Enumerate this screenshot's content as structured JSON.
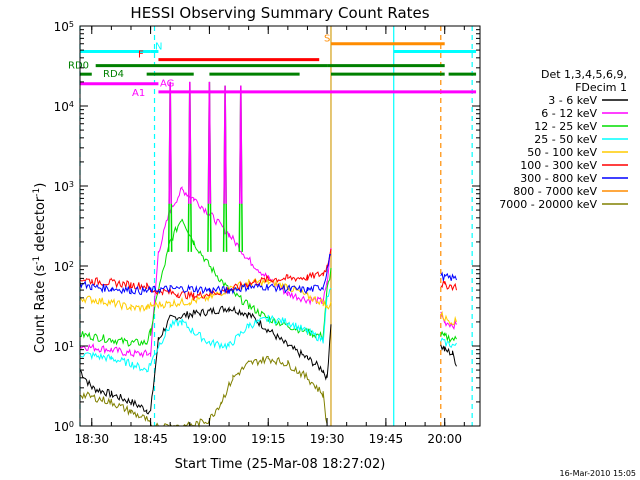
{
  "chart_data": {
    "type": "line",
    "title": "HESSI Observing Summary Count Rates",
    "xlabel": "Start Time (25-Mar-08 18:27:02)",
    "ylabel_main": "Count Rate (s",
    "ylabel_sup1": "-1",
    "ylabel_mid": " detector",
    "ylabel_sup2": "-1",
    "ylabel_end": ")",
    "xlim": [
      "18:27",
      "20:09"
    ],
    "ylim": [
      1,
      100000
    ],
    "yscale": "log",
    "xticks": [
      "18:30",
      "18:45",
      "19:00",
      "19:15",
      "19:30",
      "19:45",
      "20:00"
    ],
    "yticks": [
      {
        "value": 1,
        "base": "10",
        "exp": "0"
      },
      {
        "value": 10,
        "base": "10",
        "exp": "1"
      },
      {
        "value": 100,
        "base": "10",
        "exp": "2"
      },
      {
        "value": 1000,
        "base": "10",
        "exp": "3"
      },
      {
        "value": 10000,
        "base": "10",
        "exp": "4"
      },
      {
        "value": 100000,
        "base": "10",
        "exp": "5"
      }
    ],
    "legend_header": [
      "Det 1,3,4,5,6,9,",
      "FDecim 1"
    ],
    "legend_placement": "right",
    "footer_timestamp": "16-Mar-2010 15:05",
    "series": [
      {
        "name": "3 - 6 keV",
        "color": "#000000",
        "points": [
          [
            "18:27",
            5
          ],
          [
            "18:30",
            3
          ],
          [
            "18:35",
            2.5
          ],
          [
            "18:40",
            2
          ],
          [
            "18:44",
            1.6
          ],
          [
            "18:45",
            1.5
          ],
          [
            "18:47",
            12
          ],
          [
            "18:50",
            22
          ],
          [
            "18:55",
            25
          ],
          [
            "19:00",
            27
          ],
          [
            "19:05",
            30
          ],
          [
            "19:10",
            25
          ],
          [
            "19:15",
            16
          ],
          [
            "19:20",
            10
          ],
          [
            "19:25",
            7
          ],
          [
            "19:29",
            5
          ],
          [
            "19:30",
            4
          ],
          [
            "19:31",
            20
          ],
          [
            "19:59",
            10
          ],
          [
            "20:00",
            9
          ],
          [
            "20:02",
            8
          ],
          [
            "20:03",
            6
          ]
        ]
      },
      {
        "name": "6 - 12 keV",
        "color": "#ff00ff",
        "points": [
          [
            "18:27",
            10
          ],
          [
            "18:35",
            9
          ],
          [
            "18:40",
            8
          ],
          [
            "18:44",
            8
          ],
          [
            "18:45",
            8
          ],
          [
            "18:47",
            150
          ],
          [
            "18:50",
            500
          ],
          [
            "18:53",
            900
          ],
          [
            "18:56",
            700
          ],
          [
            "19:00",
            450
          ],
          [
            "19:05",
            250
          ],
          [
            "19:10",
            120
          ],
          [
            "19:15",
            70
          ],
          [
            "19:20",
            45
          ],
          [
            "19:25",
            38
          ],
          [
            "19:29",
            36
          ],
          [
            "19:30",
            60
          ],
          [
            "19:31",
            180
          ],
          [
            "19:59",
            25
          ],
          [
            "20:00",
            20
          ],
          [
            "20:03",
            18
          ]
        ]
      },
      {
        "name": "12 - 25 keV",
        "color": "#00dd00",
        "points": [
          [
            "18:27",
            14
          ],
          [
            "18:35",
            12
          ],
          [
            "18:40",
            11
          ],
          [
            "18:44",
            11
          ],
          [
            "18:45",
            15
          ],
          [
            "18:47",
            50
          ],
          [
            "18:50",
            200
          ],
          [
            "18:53",
            400
          ],
          [
            "18:56",
            200
          ],
          [
            "19:00",
            100
          ],
          [
            "19:05",
            50
          ],
          [
            "19:10",
            32
          ],
          [
            "19:15",
            22
          ],
          [
            "19:20",
            18
          ],
          [
            "19:25",
            15
          ],
          [
            "19:29",
            13
          ],
          [
            "19:30",
            50
          ],
          [
            "19:31",
            90
          ],
          [
            "19:59",
            14
          ],
          [
            "20:00",
            13
          ],
          [
            "20:03",
            12
          ]
        ]
      },
      {
        "name": "25 - 50 keV",
        "color": "#00ffff",
        "points": [
          [
            "18:27",
            8
          ],
          [
            "18:35",
            7
          ],
          [
            "18:40",
            6
          ],
          [
            "18:44",
            5
          ],
          [
            "18:45",
            6
          ],
          [
            "18:47",
            10
          ],
          [
            "18:50",
            18
          ],
          [
            "18:53",
            20
          ],
          [
            "18:56",
            15
          ],
          [
            "19:00",
            11
          ],
          [
            "19:05",
            10
          ],
          [
            "19:10",
            18
          ],
          [
            "19:15",
            22
          ],
          [
            "19:20",
            20
          ],
          [
            "19:25",
            15
          ],
          [
            "19:29",
            12
          ],
          [
            "19:30",
            40
          ],
          [
            "19:31",
            50
          ],
          [
            "19:59",
            12
          ],
          [
            "20:00",
            11
          ],
          [
            "20:03",
            10
          ]
        ]
      },
      {
        "name": "50 - 100 keV",
        "color": "#ffcc00",
        "points": [
          [
            "18:27",
            40
          ],
          [
            "18:35",
            35
          ],
          [
            "18:40",
            30
          ],
          [
            "18:44",
            30
          ],
          [
            "18:45",
            32
          ],
          [
            "18:50",
            34
          ],
          [
            "18:55",
            36
          ],
          [
            "19:00",
            40
          ],
          [
            "19:05",
            52
          ],
          [
            "19:10",
            62
          ],
          [
            "19:15",
            63
          ],
          [
            "19:20",
            55
          ],
          [
            "19:25",
            42
          ],
          [
            "19:29",
            35
          ],
          [
            "19:30",
            30
          ],
          [
            "19:31",
            35
          ],
          [
            "19:59",
            25
          ],
          [
            "20:00",
            22
          ],
          [
            "20:03",
            20
          ]
        ]
      },
      {
        "name": "100 - 300 keV",
        "color": "#ff0000",
        "points": [
          [
            "18:27",
            70
          ],
          [
            "18:30",
            65
          ],
          [
            "18:35",
            62
          ],
          [
            "18:40",
            58
          ],
          [
            "18:44",
            56
          ],
          [
            "18:45",
            50
          ],
          [
            "18:48",
            48
          ],
          [
            "18:52",
            45
          ],
          [
            "18:56",
            42
          ],
          [
            "19:00",
            45
          ],
          [
            "19:05",
            50
          ],
          [
            "19:10",
            60
          ],
          [
            "19:15",
            68
          ],
          [
            "19:20",
            70
          ],
          [
            "19:25",
            72
          ],
          [
            "19:29",
            80
          ],
          [
            "19:30",
            100
          ],
          [
            "19:31",
            170
          ],
          [
            "19:59",
            60
          ],
          [
            "20:00",
            58
          ],
          [
            "20:03",
            55
          ]
        ]
      },
      {
        "name": "300 - 800 keV",
        "color": "#0000ff",
        "points": [
          [
            "18:27",
            60
          ],
          [
            "18:30",
            55
          ],
          [
            "18:35",
            52
          ],
          [
            "18:40",
            50
          ],
          [
            "18:44",
            48
          ],
          [
            "18:45",
            50
          ],
          [
            "18:50",
            52
          ],
          [
            "18:55",
            52
          ],
          [
            "19:00",
            50
          ],
          [
            "19:05",
            50
          ],
          [
            "19:10",
            55
          ],
          [
            "19:15",
            55
          ],
          [
            "19:20",
            52
          ],
          [
            "19:25",
            50
          ],
          [
            "19:29",
            55
          ],
          [
            "19:30",
            90
          ],
          [
            "19:31",
            150
          ],
          [
            "19:59",
            75
          ],
          [
            "20:00",
            72
          ],
          [
            "20:03",
            70
          ]
        ]
      },
      {
        "name": "800 - 7000 keV",
        "color": "#ff8c00",
        "points": []
      },
      {
        "name": "7000 - 20000 keV",
        "color": "#808000",
        "points": [
          [
            "18:27",
            2.5
          ],
          [
            "18:35",
            2
          ],
          [
            "18:40",
            1.5
          ],
          [
            "18:44",
            1.2
          ],
          [
            "18:45",
            1
          ],
          [
            "18:50",
            1
          ],
          [
            "18:55",
            1
          ],
          [
            "19:00",
            1.2
          ],
          [
            "19:03",
            2
          ],
          [
            "19:06",
            4
          ],
          [
            "19:10",
            6
          ],
          [
            "19:15",
            7
          ],
          [
            "19:20",
            6
          ],
          [
            "19:25",
            4
          ],
          [
            "19:29",
            2.5
          ],
          [
            "19:30",
            1
          ]
        ]
      }
    ],
    "flare_spikes": [
      {
        "time": "18:50",
        "peak": 20000
      },
      {
        "time": "18:55",
        "peak": 20000
      },
      {
        "time": "19:00",
        "peak": 20000
      },
      {
        "time": "19:04",
        "peak": 18000
      },
      {
        "time": "19:08",
        "peak": 18000
      }
    ],
    "state_bars": [
      {
        "label": "N",
        "color": "#00ffff",
        "y": 48000,
        "segments": [
          [
            "18:27",
            "18:45"
          ],
          [
            "18:45",
            "18:47"
          ],
          [
            "19:47",
            "20:08"
          ]
        ]
      },
      {
        "label": "S",
        "color": "#ff8c00",
        "y": 60000,
        "segments": [
          [
            "19:31",
            "20:00"
          ]
        ]
      },
      {
        "label": "F",
        "color": "#ff0000",
        "y": 38000,
        "segments": [
          [
            "18:47",
            "19:28"
          ]
        ]
      },
      {
        "label": "RD0",
        "color": "#008000",
        "y": 32000,
        "segments": [
          [
            "18:31",
            "19:30"
          ],
          [
            "19:30",
            "20:00"
          ]
        ]
      },
      {
        "label": "RD4",
        "color": "#008000",
        "y": 25000,
        "segments": [
          [
            "18:27",
            "18:30"
          ],
          [
            "18:44",
            "18:56"
          ],
          [
            "19:00",
            "19:23"
          ],
          [
            "19:31",
            "20:00"
          ],
          [
            "20:01",
            "20:08"
          ]
        ]
      },
      {
        "label": "AG",
        "color": "#ff00ff",
        "y": 19000,
        "segments": [
          [
            "18:27",
            "18:47"
          ]
        ]
      },
      {
        "label": "A1",
        "color": "#ff00ff",
        "y": 15000,
        "segments": [
          [
            "18:47",
            "20:08"
          ]
        ]
      }
    ],
    "vertical_markers": [
      {
        "time": "18:27",
        "color": "#00ffff",
        "style": "dashed"
      },
      {
        "time": "18:46",
        "color": "#00ffff",
        "style": "dashed"
      },
      {
        "time": "19:31",
        "color": "#d4a017",
        "style": "solid"
      },
      {
        "time": "19:47",
        "color": "#00ffff",
        "style": "solid"
      },
      {
        "time": "19:59",
        "color": "#ff8c00",
        "style": "dashed"
      },
      {
        "time": "20:07",
        "color": "#00ffff",
        "style": "dashed"
      }
    ]
  }
}
